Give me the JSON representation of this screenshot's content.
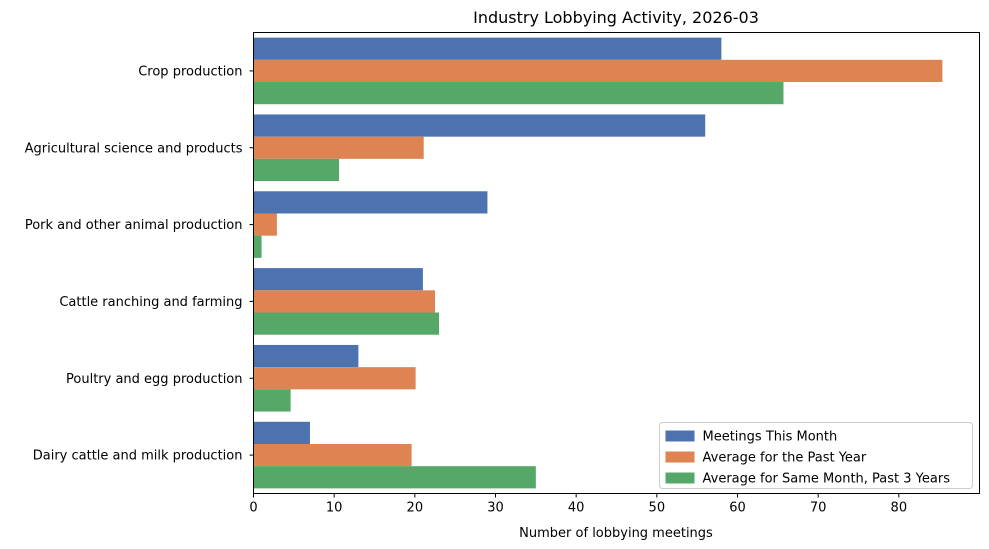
{
  "chart_data": {
    "type": "bar",
    "orientation": "horizontal",
    "title": "Industry Lobbying Activity, 2026-03",
    "xlabel": "Number of lobbying meetings",
    "ylabel": "",
    "xlim": [
      0,
      90
    ],
    "xticks": [
      0,
      10,
      20,
      30,
      40,
      50,
      60,
      70,
      80
    ],
    "categories": [
      "Crop production",
      "Agricultural science and products",
      "Pork and other animal production",
      "Cattle ranching and farming",
      "Poultry and egg production",
      "Dairy cattle and milk production"
    ],
    "series": [
      {
        "name": "Meetings This Month",
        "color": "#4c72b0",
        "values": [
          58,
          56,
          29,
          21,
          13,
          7
        ]
      },
      {
        "name": "Average for the Past Year",
        "color": "#dd8452",
        "values": [
          85.4,
          21.1,
          2.9,
          22.5,
          20.1,
          19.6
        ]
      },
      {
        "name": "Average for Same Month, Past 3 Years",
        "color": "#55a868",
        "values": [
          65.7,
          10.6,
          1.0,
          23.0,
          4.6,
          35.0
        ]
      }
    ],
    "legend": {
      "position": "lower right"
    },
    "grid": false
  }
}
